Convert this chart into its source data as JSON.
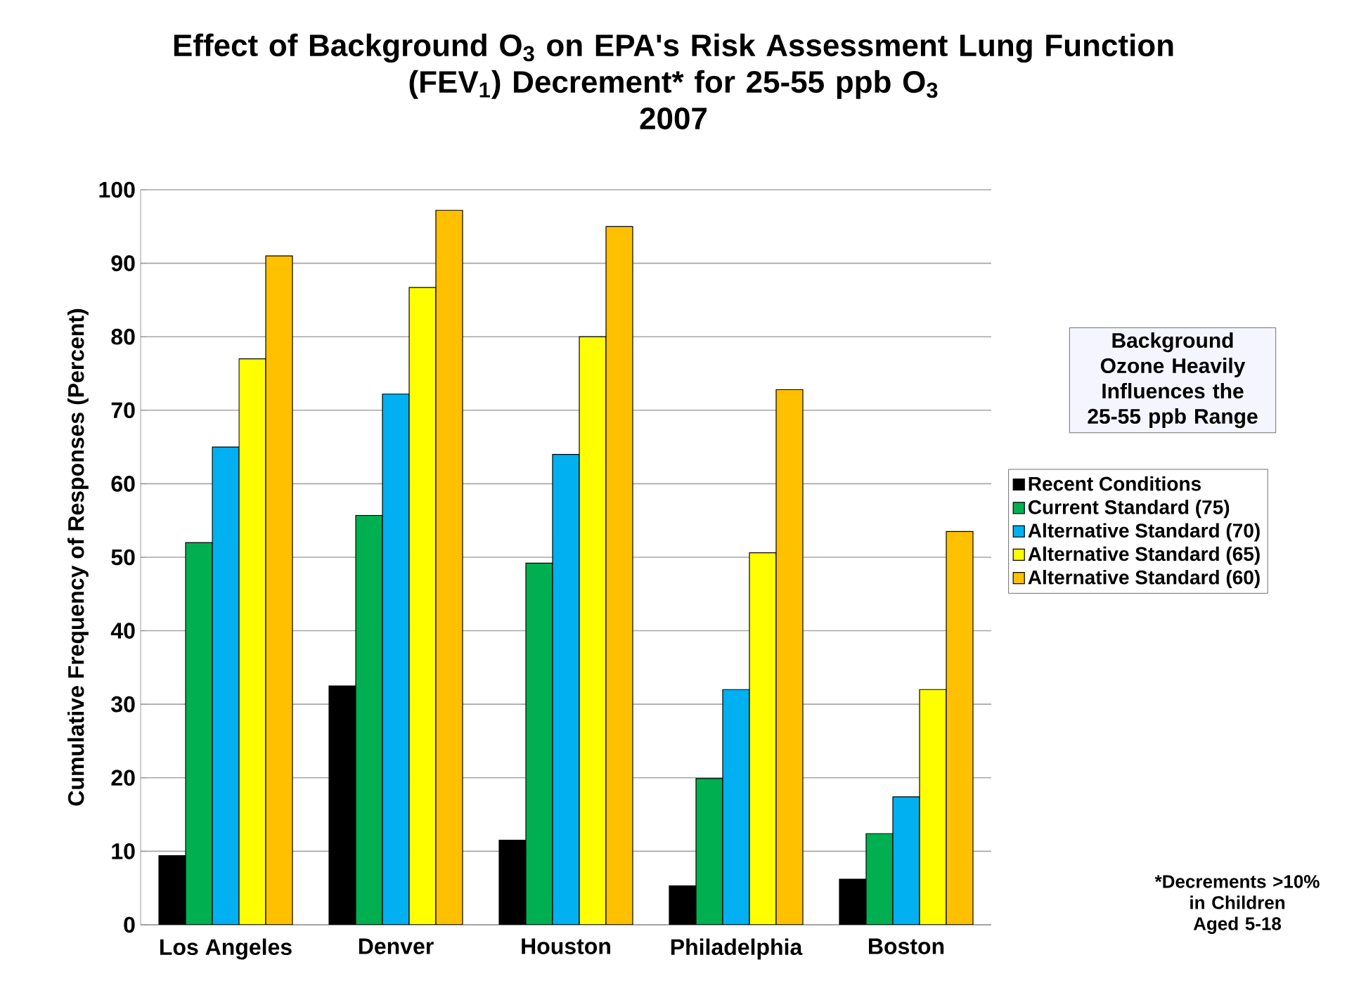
{
  "chart_data": {
    "type": "bar",
    "title": "Effect of Background O$_{3}$ on EPA's Risk Assessment Lung Function (FEV$_{1}$) Decrement* for 25-55 ppb O$_{3}$",
    "subtitle": "2007",
    "ylabel": "Cumulative Frequency of Responses (Percent)",
    "categories": [
      "Los Angeles",
      "Denver",
      "Houston",
      "Philadelphia",
      "Boston"
    ],
    "series": [
      {
        "name": "Recent Conditions",
        "color": "#000000",
        "values": [
          9.4,
          32.5,
          11.5,
          5.3,
          6.2
        ]
      },
      {
        "name": "Current Standard (75)",
        "color": "#00b050",
        "values": [
          52,
          55.7,
          49.2,
          19.9,
          12.4
        ]
      },
      {
        "name": "Alternative Standard (70)",
        "color": "#00b0f0",
        "values": [
          65,
          72.2,
          64,
          32,
          17.4
        ]
      },
      {
        "name": "Alternative Standard (65)",
        "color": "#ffff00",
        "values": [
          77,
          86.7,
          80,
          50.6,
          32
        ]
      },
      {
        "name": "Alternative Standard (60)",
        "color": "#ffc000",
        "values": [
          91,
          97.2,
          95,
          72.8,
          53.5
        ]
      }
    ],
    "ylim": [
      0,
      100
    ],
    "yticks": [
      0,
      10,
      20,
      30,
      40,
      50,
      60,
      70,
      80,
      90,
      100
    ],
    "grid": "y",
    "legend": "right",
    "annotations": [
      "Background Ozone Heavily Influences the 25-55 ppb Range",
      "*Decrements >10% in Children Aged 5-18"
    ]
  }
}
